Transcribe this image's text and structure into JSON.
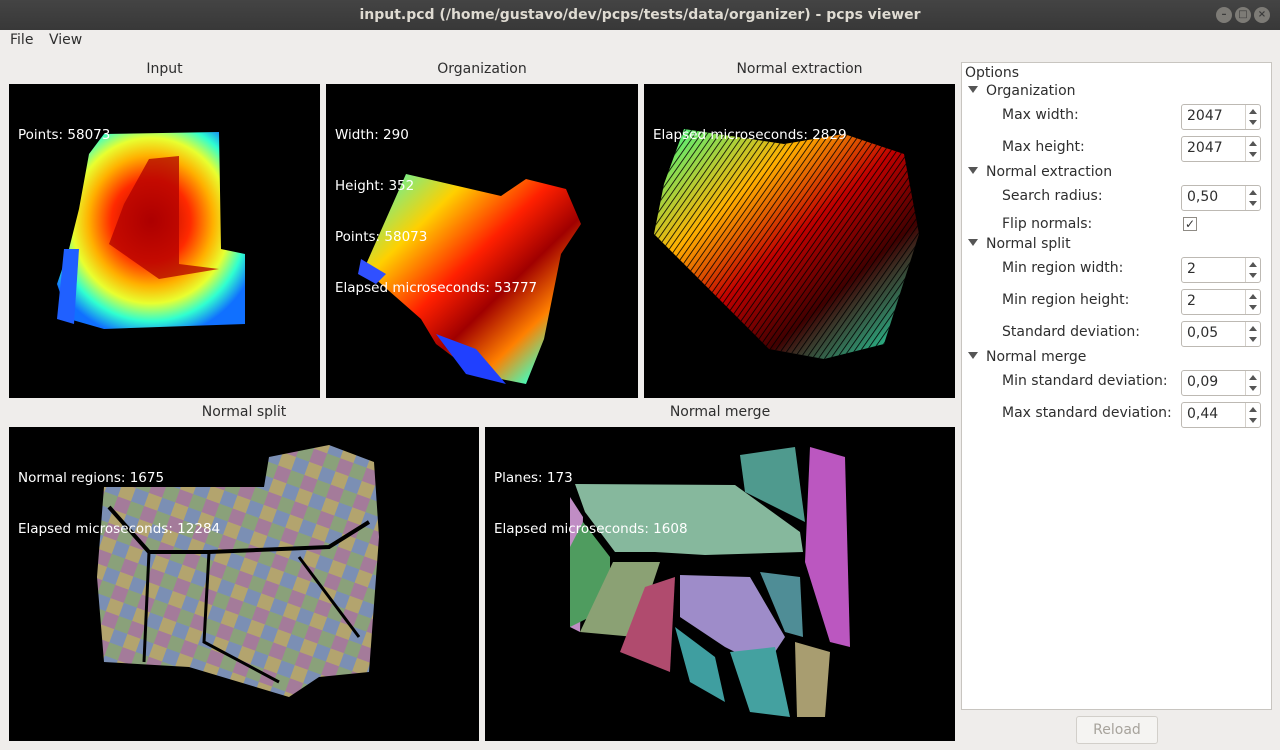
{
  "window": {
    "title": "input.pcd (/home/gustavo/dev/pcps/tests/data/organizer) - pcps viewer"
  },
  "menu": {
    "file": "File",
    "view": "View"
  },
  "panels": {
    "input": {
      "title": "Input",
      "lines": [
        "Points: 58073"
      ]
    },
    "organization": {
      "title": "Organization",
      "lines": [
        "Width: 290",
        "Height: 352",
        "Points: 58073",
        "Elapsed microseconds: 53777"
      ]
    },
    "normal_extraction": {
      "title": "Normal extraction",
      "lines": [
        "Elapsed microseconds: 2829"
      ]
    },
    "normal_split": {
      "title": "Normal split",
      "lines": [
        "Normal regions: 1675",
        "Elapsed microseconds: 12284"
      ]
    },
    "normal_merge": {
      "title": "Normal merge",
      "lines": [
        "Planes: 173",
        "Elapsed microseconds: 1608"
      ]
    }
  },
  "options": {
    "title": "Options",
    "organization": {
      "label": "Organization",
      "max_width_label": "Max width:",
      "max_width": "2047",
      "max_height_label": "Max height:",
      "max_height": "2047"
    },
    "normal_extraction": {
      "label": "Normal extraction",
      "search_radius_label": "Search radius:",
      "search_radius": "0,50",
      "flip_normals_label": "Flip normals:",
      "flip_normals_mark": "✓"
    },
    "normal_split": {
      "label": "Normal split",
      "min_region_width_label": "Min region width:",
      "min_region_width": "2",
      "min_region_height_label": "Min region height:",
      "min_region_height": "2",
      "std_dev_label": "Standard deviation:",
      "std_dev": "0,05"
    },
    "normal_merge": {
      "label": "Normal merge",
      "min_std_label": "Min standard deviation:",
      "min_std": "0,09",
      "max_std_label": "Max standard deviation:",
      "max_std": "0,44"
    }
  },
  "reload_label": "Reload",
  "colors": {
    "titlebar": "#3c3c3c",
    "window_bg": "#efedeb",
    "panel_bg": "#000000"
  }
}
